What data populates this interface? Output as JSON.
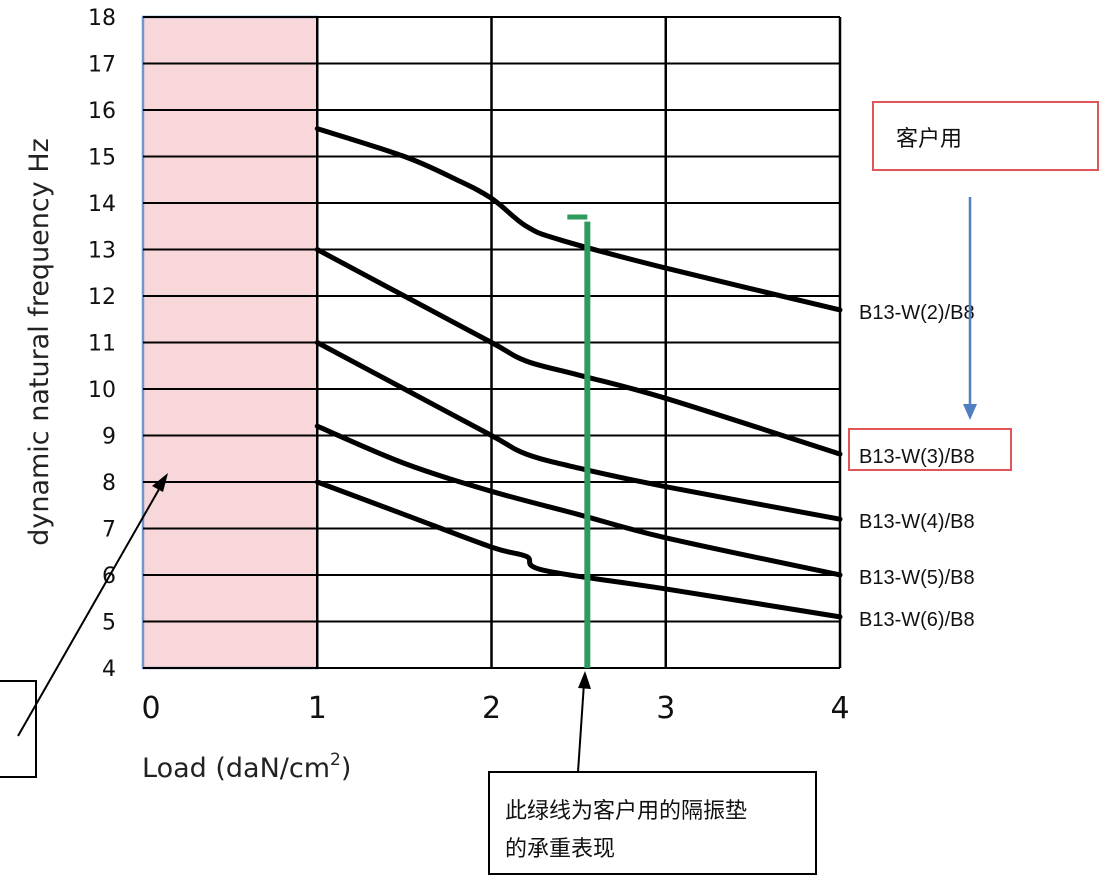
{
  "chart_data": {
    "type": "line",
    "ylabel": "dynamic natural frequency Hz",
    "xlabel": "Load (daN/cm",
    "xlabel_sup": "2",
    "xlabel_close": ")",
    "xlim": [
      0,
      4
    ],
    "ylim": [
      4,
      18
    ],
    "x_ticks": [
      "0",
      "1",
      "2",
      "3",
      "4"
    ],
    "y_ticks": [
      "4",
      "5",
      "6",
      "7",
      "8",
      "9",
      "10",
      "11",
      "12",
      "13",
      "14",
      "15",
      "16",
      "17",
      "18"
    ],
    "grid": true,
    "highlight_region": {
      "x": [
        0,
        1
      ]
    },
    "marker_line_x": 2.55,
    "series": [
      {
        "name": "B13-W(2)/B8",
        "points": [
          [
            1,
            15.6
          ],
          [
            1.5,
            15.0
          ],
          [
            1.8,
            14.5
          ],
          [
            2.0,
            14.1
          ],
          [
            2.2,
            13.5
          ],
          [
            2.4,
            13.2
          ],
          [
            3.0,
            12.6
          ],
          [
            4,
            11.7
          ]
        ]
      },
      {
        "name": "B13-W(3)/B8",
        "highlighted": true,
        "points": [
          [
            1,
            13.0
          ],
          [
            1.5,
            12.0
          ],
          [
            2.0,
            11.0
          ],
          [
            2.2,
            10.6
          ],
          [
            2.5,
            10.3
          ],
          [
            3.0,
            9.8
          ],
          [
            4,
            8.6
          ]
        ]
      },
      {
        "name": "B13-W(4)/B8",
        "points": [
          [
            1,
            11.0
          ],
          [
            1.5,
            10.0
          ],
          [
            2.0,
            9.0
          ],
          [
            2.2,
            8.6
          ],
          [
            2.5,
            8.3
          ],
          [
            3.0,
            7.9
          ],
          [
            4,
            7.2
          ]
        ]
      },
      {
        "name": "B13-W(5)/B8",
        "points": [
          [
            1,
            9.2
          ],
          [
            1.5,
            8.4
          ],
          [
            2.0,
            7.8
          ],
          [
            2.5,
            7.3
          ],
          [
            3.0,
            6.8
          ],
          [
            4,
            6.0
          ]
        ]
      },
      {
        "name": "B13-W(6)/B8",
        "points": [
          [
            1,
            8.0
          ],
          [
            1.5,
            7.3
          ],
          [
            2.0,
            6.6
          ],
          [
            2.2,
            6.4
          ],
          [
            2.3,
            6.1
          ],
          [
            3.0,
            5.7
          ],
          [
            4,
            5.1
          ]
        ]
      }
    ]
  },
  "annotations": {
    "customer_use": "客户用",
    "green_line_note_1": "此绿线为客户用的隔振垫",
    "green_line_note_2": "的承重表现"
  },
  "colors": {
    "highlight_fill": "#f8d7da",
    "highlight_border": "#6f96c8",
    "marker_line": "#2e9a5e",
    "callout_border": "#e05555",
    "arrow_blue": "#4f7fc0",
    "curve": "#000000",
    "grid": "#000000"
  }
}
